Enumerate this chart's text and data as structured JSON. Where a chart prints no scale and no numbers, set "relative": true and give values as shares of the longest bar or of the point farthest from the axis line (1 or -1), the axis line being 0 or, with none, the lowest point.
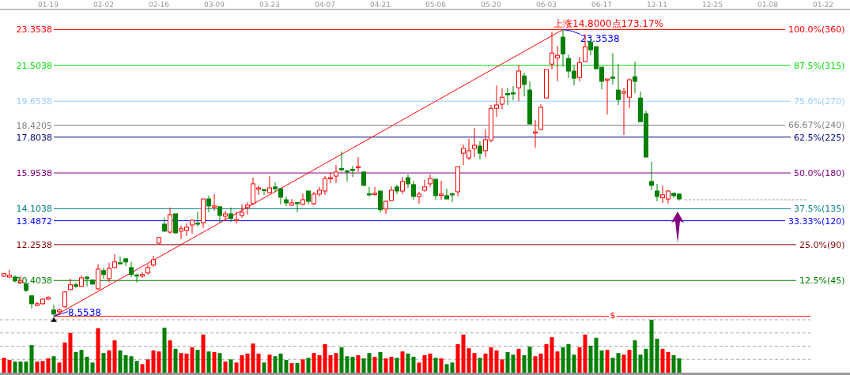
{
  "chart_data": [
    {
      "type": "candlestick",
      "categories": [
        null,
        null,
        null,
        null,
        null,
        null,
        null,
        null,
        "01-19",
        null,
        null,
        null,
        null,
        null,
        null,
        null,
        null,
        null,
        "02-02",
        null,
        null,
        null,
        null,
        null,
        null,
        null,
        null,
        null,
        "02-16",
        null,
        null,
        null,
        null,
        null,
        null,
        null,
        null,
        null,
        "03-09",
        null,
        null,
        null,
        null,
        null,
        null,
        null,
        null,
        null,
        "03-23",
        null,
        null,
        null,
        null,
        null,
        null,
        null,
        null,
        null,
        "04-07",
        null,
        null,
        null,
        null,
        null,
        null,
        null,
        null,
        null,
        "04-21",
        null,
        null,
        null,
        null,
        null,
        null,
        null,
        null,
        null,
        "05-06",
        null,
        null,
        null,
        null,
        null,
        null,
        null,
        null,
        null,
        "05-20",
        null,
        null,
        null,
        null,
        null,
        null,
        null,
        null,
        null,
        "06-03",
        null,
        null,
        null,
        null,
        null,
        null,
        null,
        null,
        null,
        "06-17",
        null,
        null,
        null,
        null,
        null,
        null,
        null,
        null,
        null,
        "12-11",
        null,
        null,
        null,
        null,
        null,
        null,
        null,
        null,
        null,
        "12-25",
        null,
        null,
        null,
        null,
        null,
        null,
        null,
        null,
        null,
        "01-08",
        null,
        null,
        null,
        null,
        null,
        null,
        null,
        null,
        null,
        "01-22",
        null,
        null,
        null,
        null
      ],
      "ohlc": [
        [
          10.63,
          10.79,
          10.58,
          10.75
        ],
        [
          10.58,
          10.95,
          10.54,
          10.67
        ],
        [
          10.58,
          10.67,
          10.3,
          10.38
        ],
        [
          10.3,
          10.63,
          10.22,
          10.38
        ],
        [
          10.22,
          10.3,
          9.81,
          9.89
        ],
        [
          9.61,
          9.65,
          8.96,
          9.2
        ],
        [
          9.12,
          9.28,
          9.08,
          9.2
        ],
        [
          9.2,
          9.49,
          9.16,
          9.44
        ],
        [
          9.44,
          9.61,
          9.4,
          9.53
        ],
        [
          8.88,
          9.16,
          8.5538,
          8.67
        ],
        [
          8.79,
          8.96,
          8.63,
          8.88
        ],
        [
          9.04,
          9.85,
          9.0,
          9.81
        ],
        [
          9.93,
          10.5,
          9.89,
          10.18
        ],
        [
          10.18,
          10.3,
          10.02,
          10.1
        ],
        [
          10.1,
          10.67,
          10.06,
          10.54
        ],
        [
          10.58,
          10.63,
          10.1,
          10.5
        ],
        [
          10.42,
          10.46,
          10.18,
          10.22
        ],
        [
          9.97,
          11.24,
          9.93,
          10.99
        ],
        [
          10.91,
          11.07,
          10.5,
          10.71
        ],
        [
          10.5,
          11.32,
          10.3,
          11.03
        ],
        [
          11.07,
          11.76,
          11.03,
          11.36
        ],
        [
          11.32,
          11.64,
          11.28,
          11.3
        ],
        [
          11.52,
          11.56,
          11.15,
          11.36
        ],
        [
          11.07,
          11.36,
          10.58,
          10.71
        ],
        [
          10.69,
          10.75,
          10.3,
          10.67
        ],
        [
          10.63,
          10.83,
          10.54,
          10.71
        ],
        [
          10.79,
          11.24,
          10.71,
          11.07
        ],
        [
          11.2,
          11.68,
          11.11,
          11.48
        ],
        [
          12.33,
          12.66,
          12.25,
          12.62
        ],
        [
          13.31,
          13.64,
          12.9,
          12.95
        ],
        [
          12.9,
          14.17,
          12.82,
          13.8
        ],
        [
          13.84,
          13.84,
          12.82,
          12.86
        ],
        [
          12.95,
          13.23,
          12.54,
          13.07
        ],
        [
          12.99,
          13.35,
          12.7,
          13.15
        ],
        [
          13.27,
          13.55,
          12.82,
          13.51
        ],
        [
          13.37,
          13.96,
          13.19,
          13.35
        ],
        [
          13.39,
          14.61,
          13.11,
          14.61
        ],
        [
          14.61,
          14.78,
          13.92,
          14.25
        ],
        [
          14.23,
          14.86,
          14.0,
          14.25
        ],
        [
          14.21,
          14.21,
          13.35,
          13.76
        ],
        [
          13.72,
          14.0,
          13.47,
          13.84
        ],
        [
          13.84,
          14.17,
          13.43,
          13.6
        ],
        [
          13.53,
          13.96,
          13.35,
          13.55
        ],
        [
          13.76,
          14.33,
          13.64,
          13.92
        ],
        [
          14.17,
          14.45,
          13.8,
          14.29
        ],
        [
          14.37,
          15.71,
          14.29,
          15.39
        ],
        [
          15.16,
          15.31,
          14.82,
          15.18
        ],
        [
          15.1,
          15.1,
          14.82,
          15.06
        ],
        [
          14.94,
          15.79,
          14.9,
          15.18
        ],
        [
          15.23,
          15.47,
          14.98,
          15.14
        ],
        [
          15.14,
          15.14,
          14.33,
          14.7
        ],
        [
          14.57,
          14.74,
          14.25,
          14.41
        ],
        [
          14.29,
          14.61,
          14.25,
          14.41
        ],
        [
          14.43,
          14.45,
          13.92,
          14.41
        ],
        [
          14.33,
          14.9,
          14.29,
          14.57
        ],
        [
          15.02,
          15.02,
          14.33,
          14.49
        ],
        [
          14.37,
          14.98,
          14.29,
          14.86
        ],
        [
          14.86,
          15.23,
          14.74,
          15.06
        ],
        [
          15.02,
          15.79,
          14.82,
          15.67
        ],
        [
          15.69,
          16.0,
          15.43,
          15.71
        ],
        [
          15.79,
          16.36,
          15.43,
          16.0
        ],
        [
          16.18,
          17.06,
          16.0,
          16.16
        ],
        [
          16.06,
          16.12,
          15.51,
          16.04
        ],
        [
          16.14,
          16.32,
          15.75,
          16.12
        ],
        [
          16.26,
          16.77,
          16.0,
          16.28
        ],
        [
          16.0,
          16.04,
          15.27,
          15.31
        ],
        [
          14.88,
          15.23,
          14.74,
          14.86
        ],
        [
          14.88,
          15.23,
          14.78,
          14.9
        ],
        [
          15.02,
          15.02,
          13.92,
          14.05
        ],
        [
          14.09,
          14.53,
          13.84,
          14.49
        ],
        [
          14.53,
          15.27,
          14.49,
          15.06
        ],
        [
          15.23,
          15.35,
          14.86,
          15.02
        ],
        [
          15.02,
          15.75,
          14.86,
          15.51
        ],
        [
          15.71,
          15.88,
          15.18,
          15.39
        ],
        [
          15.35,
          15.55,
          14.57,
          14.74
        ],
        [
          14.74,
          14.98,
          14.37,
          14.86
        ],
        [
          15.06,
          15.59,
          14.98,
          15.23
        ],
        [
          15.39,
          15.88,
          15.23,
          15.67
        ],
        [
          15.63,
          15.63,
          14.57,
          14.78
        ],
        [
          14.84,
          15.55,
          14.57,
          14.86
        ],
        [
          14.78,
          15.14,
          14.61,
          14.61
        ],
        [
          14.88,
          14.94,
          14.45,
          14.86
        ],
        [
          14.98,
          16.28,
          14.74,
          16.28
        ],
        [
          16.97,
          17.42,
          16.36,
          17.22
        ],
        [
          16.73,
          17.71,
          16.61,
          17.1
        ],
        [
          17.22,
          18.28,
          16.77,
          17.38
        ],
        [
          17.34,
          17.59,
          16.65,
          16.97
        ],
        [
          17.1,
          18.2,
          16.77,
          17.67
        ],
        [
          17.63,
          19.46,
          17.54,
          19.29
        ],
        [
          19.29,
          20.47,
          18.85,
          19.46
        ],
        [
          19.5,
          20.31,
          19.25,
          19.86
        ],
        [
          20.05,
          20.35,
          19.46,
          20.03
        ],
        [
          20.09,
          20.43,
          19.7,
          20.07
        ],
        [
          20.35,
          21.53,
          19.66,
          21.21
        ],
        [
          20.96,
          21.13,
          19.9,
          20.52
        ],
        [
          20.23,
          20.68,
          18.48,
          18.48
        ],
        [
          18.05,
          18.68,
          17.26,
          18.07
        ],
        [
          18.2,
          19.5,
          18.16,
          19.34
        ],
        [
          19.82,
          21.29,
          19.82,
          21.29
        ],
        [
          21.57,
          23.24,
          21.29,
          22.14
        ],
        [
          21.9,
          22.51,
          20.68,
          22.02
        ],
        [
          22.96,
          23.3538,
          21.45,
          22.1
        ],
        [
          21.86,
          22.06,
          20.84,
          21.21
        ],
        [
          21.21,
          21.49,
          20.47,
          20.84
        ],
        [
          20.88,
          21.94,
          20.68,
          21.65
        ],
        [
          21.7,
          23.12,
          21.7,
          22.47
        ],
        [
          22.71,
          22.92,
          22.02,
          22.31
        ],
        [
          22.47,
          22.47,
          21.33,
          21.33
        ],
        [
          21.41,
          21.41,
          20.27,
          20.68
        ],
        [
          20.78,
          20.8,
          18.97,
          20.8
        ],
        [
          20.9,
          22.14,
          20.52,
          20.88
        ],
        [
          20.23,
          21.57,
          19.46,
          19.74
        ],
        [
          20.07,
          20.35,
          17.91,
          20.15
        ],
        [
          19.86,
          20.84,
          19.29,
          20.76
        ],
        [
          20.92,
          21.7,
          20.07,
          20.68
        ],
        [
          19.82,
          20.15,
          18.6,
          18.6
        ],
        [
          19.01,
          19.17,
          16.77,
          16.77
        ],
        [
          15.51,
          16.53,
          15.06,
          15.31
        ],
        [
          15.02,
          15.39,
          14.49,
          14.74
        ],
        [
          14.67,
          15.31,
          14.41,
          14.82
        ],
        [
          14.61,
          15.06,
          14.37,
          15.02
        ],
        [
          14.9,
          14.94,
          14.67,
          14.78
        ],
        [
          14.86,
          14.9,
          14.53,
          14.61
        ],
        null,
        null,
        null,
        null,
        null,
        null,
        null,
        null,
        null,
        null,
        null,
        null,
        null,
        null,
        null,
        null,
        null,
        null,
        null,
        null,
        null,
        null,
        null,
        null,
        null,
        null,
        null,
        null,
        null,
        null
      ],
      "colors": [
        "#ff0000",
        "#ff0000",
        "#008000",
        "#ff0000",
        "#008000",
        "#008000",
        "#ff0000",
        "#ff0000",
        "#ff0000",
        "#008000",
        "#ff0000",
        "#ff0000",
        "#ff0000",
        "#008000",
        "#ff0000",
        "#008000",
        "#008000",
        "#ff0000",
        "#008000",
        "#ff0000",
        "#ff0000",
        "#008000",
        "#008000",
        "#008000",
        "#008000",
        "#ff0000",
        "#ff0000",
        "#ff0000",
        "#ff0000",
        "#008000",
        "#ff0000",
        "#008000",
        "#ff0000",
        "#ff0000",
        "#ff0000",
        "#008000",
        "#ff0000",
        "#008000",
        "#ff0000",
        "#008000",
        "#ff0000",
        "#008000",
        "#ff0000",
        "#ff0000",
        "#ff0000",
        "#ff0000",
        "#ff0000",
        "#008000",
        "#ff0000",
        "#008000",
        "#008000",
        "#008000",
        "#ff0000",
        "#008000",
        "#ff0000",
        "#008000",
        "#ff0000",
        "#ff0000",
        "#ff0000",
        "#ff0000",
        "#ff0000",
        "#008000",
        "#008000",
        "#008000",
        "#ff0000",
        "#008000",
        "#008000",
        "#ff0000",
        "#008000",
        "#ff0000",
        "#ff0000",
        "#008000",
        "#ff0000",
        "#008000",
        "#008000",
        "#ff0000",
        "#ff0000",
        "#ff0000",
        "#008000",
        "#ff0000",
        "#008000",
        "#008000",
        "#ff0000",
        "#ff0000",
        "#ff0000",
        "#ff0000",
        "#008000",
        "#ff0000",
        "#ff0000",
        "#ff0000",
        "#ff0000",
        "#008000",
        "#008000",
        "#ff0000",
        "#008000",
        "#008000",
        "#ff0000",
        "#ff0000",
        "#ff0000",
        "#ff0000",
        "#ff0000",
        "#008000",
        "#008000",
        "#008000",
        "#ff0000",
        "#ff0000",
        "#008000",
        "#008000",
        "#008000",
        "#ff0000",
        "#008000",
        "#008000",
        "#ff0000",
        "#ff0000",
        "#008000",
        "#008000",
        "#008000",
        "#008000",
        "#008000",
        "#ff0000",
        "#ff0000",
        "#008000",
        "#008000",
        null,
        null,
        null,
        null,
        null,
        null,
        null,
        null,
        null,
        null,
        null,
        null,
        null,
        null,
        null,
        null,
        null,
        null,
        null,
        null,
        null,
        null,
        null,
        null,
        null,
        null,
        null,
        null,
        null,
        null
      ],
      "series": [
        {
          "type": "line",
          "color": "#ff0000",
          "values": [
            null,
            null,
            null,
            null,
            null,
            null,
            null,
            null,
            null,
            8.5538,
            null,
            null,
            null,
            null,
            null,
            null,
            null,
            null,
            null,
            null,
            null,
            null,
            null,
            null,
            null,
            null,
            null,
            null,
            null,
            null,
            null,
            null,
            null,
            null,
            null,
            null,
            null,
            null,
            null,
            null,
            null,
            null,
            null,
            null,
            null,
            null,
            null,
            null,
            null,
            null,
            null,
            null,
            null,
            null,
            null,
            null,
            null,
            null,
            null,
            null,
            null,
            null,
            null,
            null,
            null,
            null,
            null,
            null,
            null,
            null,
            null,
            null,
            null,
            null,
            null,
            null,
            null,
            null,
            null,
            null,
            null,
            null,
            null,
            null,
            null,
            null,
            null,
            null,
            null,
            null,
            null,
            null,
            null,
            null,
            null,
            null,
            null,
            null,
            null,
            null,
            null,
            23.3538,
            null,
            null,
            null,
            null,
            null,
            null,
            null,
            null,
            null,
            null,
            null,
            null,
            null,
            null,
            null,
            null,
            null,
            null,
            null,
            null,
            null,
            null,
            null,
            null,
            null,
            null,
            null,
            null,
            null,
            null,
            null,
            null,
            null,
            null,
            null,
            null,
            null,
            null,
            null,
            null,
            null,
            null,
            null,
            null,
            null,
            null,
            null,
            null,
            null,
            null,
            null
          ]
        },
        {
          "type": "line",
          "color": "#a0a0a0",
          "line_style": "dashed",
          "values": [
            null,
            null,
            null,
            null,
            null,
            null,
            null,
            null,
            null,
            null,
            null,
            null,
            null,
            null,
            null,
            null,
            null,
            null,
            null,
            null,
            null,
            null,
            null,
            null,
            null,
            null,
            null,
            null,
            null,
            null,
            null,
            null,
            null,
            null,
            null,
            null,
            null,
            null,
            null,
            null,
            null,
            null,
            null,
            null,
            null,
            null,
            null,
            null,
            null,
            null,
            null,
            null,
            null,
            null,
            null,
            null,
            null,
            null,
            null,
            null,
            null,
            null,
            null,
            null,
            null,
            null,
            null,
            null,
            null,
            null,
            null,
            null,
            null,
            null,
            null,
            null,
            null,
            null,
            null,
            null,
            null,
            null,
            null,
            null,
            null,
            null,
            null,
            null,
            null,
            null,
            null,
            null,
            null,
            null,
            null,
            null,
            null,
            null,
            null,
            null,
            null,
            null,
            null,
            null,
            null,
            null,
            null,
            null,
            null,
            null,
            null,
            null,
            null,
            null,
            null,
            null,
            null,
            null,
            null,
            null,
            null,
            null,
            null,
            14.57,
            null,
            null,
            null,
            null,
            null,
            null,
            null,
            null,
            null,
            null,
            null,
            null,
            null,
            null,
            null,
            null,
            null,
            null,
            null,
            null,
            null,
            14.57,
            null,
            null,
            null,
            null,
            null,
            null,
            null
          ]
        }
      ],
      "ylim": [
        8.54,
        24.39
      ],
      "yticks": [
        10.4038,
        12.2538,
        13.4872,
        14.1038,
        15.9538,
        17.8038,
        18.4205,
        19.6538,
        21.5038,
        23.3538
      ],
      "y2lim": [
        -0.09,
        107.0
      ],
      "ref_lines": [
        {
          "axis": "y2",
          "value": 100,
          "label": "100.0%(360)",
          "color": "#ff0000"
        },
        {
          "axis": "y2",
          "value": 87.5,
          "label": "87.5%(315)",
          "color": "#00dd00"
        },
        {
          "axis": "y2",
          "value": 75,
          "label": "75.0%(270)",
          "color": "#99ccff"
        },
        {
          "axis": "y2",
          "value": 66.67,
          "label": "66.67%(240)",
          "color": "#808080"
        },
        {
          "axis": "y2",
          "value": 62.5,
          "label": "62.5%(225)",
          "color": "#000080"
        },
        {
          "axis": "y2",
          "value": 50,
          "label": "50.0%(180)",
          "color": "#800080"
        },
        {
          "axis": "y2",
          "value": 37.5,
          "label": "37.5%(135)",
          "color": "#008080"
        },
        {
          "axis": "y2",
          "value": 33.33,
          "label": "33.33%(120)",
          "color": "#0000ff"
        },
        {
          "axis": "y2",
          "value": 25,
          "label": "25.0%(90)",
          "color": "#800000"
        },
        {
          "axis": "y2",
          "value": 12.5,
          "label": "12.5%(45)",
          "color": "#008000"
        },
        {
          "axis": "y",
          "value": 8.5538,
          "color": "#ff0000"
        }
      ],
      "annotations": [
        "上涨14.8000点173.17%",
        {
          "text": "23.3538",
          "y": 23.3538
        },
        {
          "text": "8.5538",
          "y": 8.5538
        }
      ]
    },
    {
      "type": "bar",
      "relative": true,
      "grid": "y",
      "categories": [
        null,
        null,
        null,
        null,
        null,
        null,
        null,
        null,
        null,
        null,
        null,
        null,
        null,
        null,
        null,
        null,
        null,
        null,
        null,
        null,
        null,
        null,
        null,
        null,
        null,
        null,
        null,
        null,
        null,
        null,
        null,
        null,
        null,
        null,
        null,
        null,
        null,
        null,
        null,
        null,
        null,
        null,
        null,
        null,
        null,
        null,
        null,
        null,
        null,
        null,
        null,
        null,
        null,
        null,
        null,
        null,
        null,
        null,
        null,
        null,
        null,
        null,
        null,
        null,
        null,
        null,
        null,
        null,
        null,
        null,
        null,
        null,
        null,
        null,
        null,
        null,
        null,
        null,
        null,
        null,
        null,
        null,
        null,
        null,
        null,
        null,
        null,
        null,
        null,
        null,
        null,
        null,
        null,
        null,
        null,
        null,
        null,
        null,
        null,
        null,
        null,
        null,
        null,
        null,
        null,
        null,
        null,
        null,
        null,
        null,
        null,
        null,
        null,
        null,
        null,
        null,
        null,
        null,
        null,
        null,
        null,
        null,
        null,
        null,
        null,
        null,
        null,
        null,
        null,
        null,
        null,
        null,
        null,
        null,
        null,
        null,
        null,
        null,
        null,
        null,
        null,
        null,
        null,
        null,
        null,
        null,
        null,
        null,
        null,
        null,
        null,
        null,
        null
      ],
      "values": [
        0.28,
        0.24,
        0.21,
        0.21,
        0.21,
        0.52,
        0.21,
        0.22,
        0.27,
        0.31,
        0.19,
        0.57,
        0.75,
        0.39,
        0.43,
        0.3,
        0.19,
        0.84,
        0.37,
        0.42,
        0.61,
        0.42,
        0.33,
        0.31,
        0.22,
        0.16,
        0.25,
        0.42,
        0.4,
        0.85,
        0.61,
        0.45,
        0.37,
        0.36,
        0.48,
        0.43,
        0.72,
        0.4,
        0.39,
        0.37,
        0.21,
        0.25,
        0.19,
        0.33,
        0.36,
        0.55,
        0.36,
        0.19,
        0.34,
        0.31,
        0.36,
        0.24,
        0.18,
        0.18,
        0.25,
        0.28,
        0.37,
        0.33,
        0.54,
        0.33,
        0.37,
        0.48,
        0.31,
        0.3,
        0.33,
        0.27,
        0.37,
        0.3,
        0.39,
        0.27,
        0.3,
        0.28,
        0.4,
        0.36,
        0.3,
        0.19,
        0.33,
        0.36,
        0.28,
        0.27,
        0.16,
        0.19,
        0.54,
        0.72,
        0.46,
        0.37,
        0.28,
        0.36,
        0.48,
        0.42,
        0.25,
        0.39,
        0.34,
        0.45,
        0.33,
        0.49,
        0.31,
        0.36,
        0.54,
        0.67,
        0.4,
        0.48,
        0.54,
        0.34,
        0.48,
        0.72,
        0.51,
        0.66,
        0.42,
        0.43,
        0.28,
        0.37,
        0.34,
        0.43,
        0.61,
        0.34,
        0.45,
        1,
        0.64,
        0.45,
        0.39,
        0.33,
        0.27,
        null,
        null,
        null,
        null,
        null,
        null,
        null,
        null,
        null,
        null,
        null,
        null,
        null,
        null,
        null,
        null,
        null,
        null,
        null,
        null,
        null,
        null,
        null,
        null,
        null,
        null,
        null,
        null,
        null,
        null
      ],
      "colors": [
        "#ff0000",
        "#ff0000",
        "#008000",
        "#008000",
        "#008000",
        "#008000",
        "#ff0000",
        "#ff0000",
        "#ff0000",
        "#008000",
        "#ff0000",
        "#ff0000",
        "#ff0000",
        "#008000",
        "#008000",
        "#008000",
        "#008000",
        "#ff0000",
        "#008000",
        "#ff0000",
        "#ff0000",
        "#008000",
        "#008000",
        "#008000",
        "#008000",
        "#ff0000",
        "#ff0000",
        "#ff0000",
        "#ff0000",
        "#008000",
        "#ff0000",
        "#008000",
        "#ff0000",
        "#ff0000",
        "#ff0000",
        "#008000",
        "#ff0000",
        "#008000",
        "#ff0000",
        "#008000",
        "#ff0000",
        "#008000",
        "#ff0000",
        "#ff0000",
        "#ff0000",
        "#ff0000",
        "#ff0000",
        "#008000",
        "#ff0000",
        "#008000",
        "#008000",
        "#008000",
        "#ff0000",
        "#008000",
        "#ff0000",
        "#008000",
        "#ff0000",
        "#ff0000",
        "#ff0000",
        "#ff0000",
        "#ff0000",
        "#008000",
        "#008000",
        "#008000",
        "#ff0000",
        "#008000",
        "#008000",
        "#ff0000",
        "#008000",
        "#ff0000",
        "#ff0000",
        "#008000",
        "#ff0000",
        "#008000",
        "#008000",
        "#ff0000",
        "#ff0000",
        "#ff0000",
        "#008000",
        "#ff0000",
        "#008000",
        "#008000",
        "#ff0000",
        "#ff0000",
        "#ff0000",
        "#ff0000",
        "#008000",
        "#ff0000",
        "#ff0000",
        "#ff0000",
        "#ff0000",
        "#008000",
        "#008000",
        "#ff0000",
        "#008000",
        "#008000",
        "#ff0000",
        "#ff0000",
        "#ff0000",
        "#ff0000",
        "#ff0000",
        "#008000",
        "#008000",
        "#008000",
        "#ff0000",
        "#ff0000",
        "#008000",
        "#008000",
        "#008000",
        "#ff0000",
        "#008000",
        "#008000",
        "#ff0000",
        "#ff0000",
        "#008000",
        "#008000",
        "#008000",
        "#008000",
        "#008000",
        "#ff0000",
        "#ff0000",
        "#008000",
        "#008000",
        null,
        null,
        null,
        null,
        null,
        null,
        null,
        null,
        null,
        null,
        null,
        null,
        null,
        null,
        null,
        null,
        null,
        null,
        null,
        null,
        null,
        null,
        null,
        null,
        null,
        null,
        null,
        null,
        null,
        null
      ],
      "annotations": [
        "$"
      ]
    }
  ]
}
